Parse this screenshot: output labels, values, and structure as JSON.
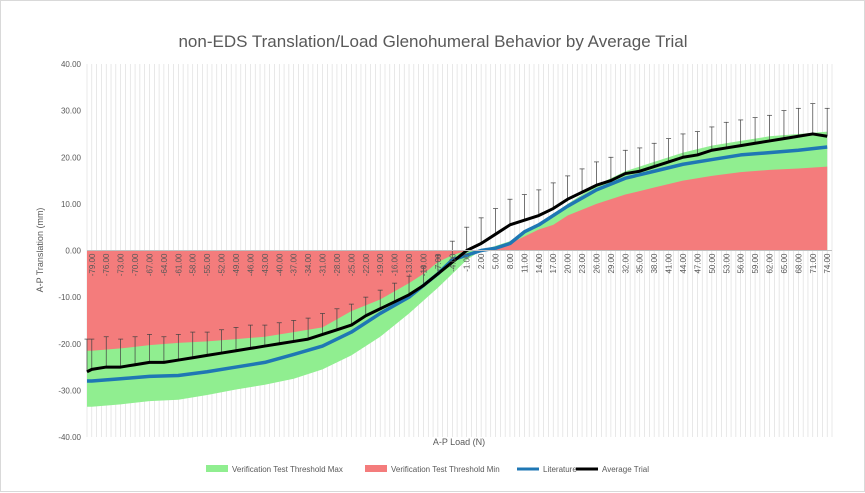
{
  "chart_data": {
    "type": "area",
    "title": "non-EDS Translation/Load Glenohumeral Behavior by Average Trial",
    "xlabel": "A-P Load (N)",
    "ylabel": "A-P Translation (mm)",
    "ylim": [
      -40,
      40
    ],
    "y_ticks": [
      "40.00",
      "30.00",
      "20.00",
      "10.00",
      "0.00",
      "-10.00",
      "-20.00",
      "-30.00",
      "-40.00"
    ],
    "x_ticks": [
      "-79.00",
      "-76.00",
      "-73.00",
      "-70.00",
      "-67.00",
      "-64.00",
      "-61.00",
      "-58.00",
      "-55.00",
      "-52.00",
      "-49.00",
      "-46.00",
      "-43.00",
      "-40.00",
      "-37.00",
      "-34.00",
      "-31.00",
      "-28.00",
      "-25.00",
      "-22.00",
      "-19.00",
      "-16.00",
      "-13.00",
      "-10.00",
      "-7.00",
      "-4.00",
      "-1.00",
      "2.00",
      "5.00",
      "8.00",
      "11.00",
      "14.00",
      "17.00",
      "20.00",
      "23.00",
      "26.00",
      "29.00",
      "32.00",
      "35.00",
      "38.00",
      "41.00",
      "44.00",
      "47.00",
      "50.00",
      "53.00",
      "56.00",
      "59.00",
      "62.00",
      "65.00",
      "68.00",
      "71.00",
      "74.00"
    ],
    "x_tick_values": [
      -79,
      -76,
      -73,
      -70,
      -67,
      -64,
      -61,
      -58,
      -55,
      -52,
      -49,
      -46,
      -43,
      -40,
      -37,
      -34,
      -31,
      -28,
      -25,
      -22,
      -19,
      -16,
      -13,
      -10,
      -7,
      -4,
      -1,
      2,
      5,
      8,
      11,
      14,
      17,
      20,
      23,
      26,
      29,
      32,
      35,
      38,
      41,
      44,
      47,
      50,
      53,
      56,
      59,
      62,
      65,
      68,
      71,
      74
    ],
    "xlim": [
      -80,
      75
    ],
    "grid": "vertical",
    "legend_position": "bottom",
    "series": [
      {
        "name": "Verification Test Threshold Max",
        "kind": "area",
        "color": "#90ee90",
        "x": [
          -80,
          -79,
          -73,
          -67,
          -61,
          -55,
          -49,
          -43,
          -37,
          -31,
          -25,
          -19,
          -13,
          -7,
          -4,
          -1,
          2,
          5,
          8,
          11,
          14,
          20,
          26,
          32,
          38,
          44,
          50,
          56,
          62,
          68,
          74
        ],
        "values": [
          -33.5,
          -33.5,
          -33,
          -32.3,
          -32,
          -31,
          -29.8,
          -28.8,
          -27.5,
          -25.5,
          -22.5,
          -18.5,
          -13.5,
          -8,
          -5,
          -2,
          0,
          1,
          2,
          4,
          5.5,
          10,
          14,
          17,
          19,
          21,
          22.5,
          23.5,
          24.5,
          25,
          25.5
        ]
      },
      {
        "name": "Verification Test Threshold Min",
        "kind": "area",
        "color": "#f47c7c",
        "x": [
          -80,
          -79,
          -73,
          -67,
          -61,
          -55,
          -49,
          -43,
          -37,
          -31,
          -25,
          -19,
          -13,
          -10,
          -7,
          -4,
          -1,
          2,
          5,
          8,
          11,
          14,
          17,
          20,
          26,
          32,
          38,
          44,
          50,
          56,
          62,
          68,
          74
        ],
        "values": [
          -21.5,
          -21.5,
          -21,
          -20.3,
          -19.8,
          -19.5,
          -19,
          -18.5,
          -17.5,
          -16.5,
          -13,
          -10.5,
          -7,
          -5,
          -2.5,
          -1,
          0,
          0,
          0.5,
          1.5,
          3,
          4.5,
          5.5,
          7.5,
          10,
          12,
          13.5,
          15,
          16,
          16.8,
          17.3,
          17.6,
          18
        ]
      },
      {
        "name": "Literature",
        "kind": "line",
        "color": "#1f77b4",
        "x": [
          -80,
          -79,
          -73,
          -67,
          -61,
          -55,
          -49,
          -43,
          -37,
          -31,
          -25,
          -19,
          -13,
          -7,
          -4,
          -1,
          2,
          5,
          8,
          11,
          14,
          20,
          26,
          32,
          38,
          44,
          50,
          56,
          62,
          68,
          74
        ],
        "values": [
          -28,
          -28,
          -27.5,
          -27,
          -26.8,
          -26,
          -25,
          -24,
          -22.3,
          -20.5,
          -17.5,
          -13.5,
          -10,
          -5,
          -2,
          -1,
          0,
          0.5,
          1.5,
          4,
          5.5,
          9.5,
          13,
          15.5,
          17,
          18.5,
          19.5,
          20.5,
          21,
          21.5,
          22.2
        ]
      },
      {
        "name": "Average Trial",
        "kind": "line_with_error_bars",
        "color": "#000000",
        "x": [
          -80,
          -79,
          -76,
          -73,
          -70,
          -67,
          -64,
          -61,
          -58,
          -55,
          -52,
          -49,
          -46,
          -43,
          -40,
          -37,
          -34,
          -31,
          -28,
          -25,
          -22,
          -19,
          -16,
          -13,
          -10,
          -7,
          -4,
          -1,
          2,
          5,
          8,
          11,
          14,
          17,
          20,
          23,
          26,
          29,
          32,
          35,
          38,
          41,
          44,
          47,
          50,
          53,
          56,
          59,
          62,
          65,
          68,
          71,
          74
        ],
        "values": [
          -26,
          -25.5,
          -25,
          -25,
          -24.5,
          -24,
          -24,
          -23.5,
          -23,
          -22.5,
          -22,
          -21.5,
          -21,
          -20.5,
          -20,
          -19.5,
          -19,
          -18,
          -17,
          -16,
          -14,
          -12.5,
          -11,
          -9.5,
          -7.5,
          -5,
          -2.5,
          0,
          1.5,
          3.5,
          5.5,
          6.5,
          7.5,
          9,
          11,
          12.5,
          14,
          15,
          16.5,
          17,
          18,
          19,
          20,
          20.5,
          21.5,
          22,
          22.5,
          23,
          23.5,
          24,
          24.5,
          25,
          24.5
        ],
        "error_plus": [
          7,
          6.5,
          6.5,
          6,
          6,
          6,
          5.5,
          5.5,
          5.5,
          5,
          5,
          5,
          5,
          4.5,
          4.5,
          4.5,
          4.5,
          4.5,
          4.5,
          4.5,
          4,
          4,
          4,
          4,
          4,
          4,
          4.5,
          5,
          5.5,
          5.5,
          5.5,
          5.5,
          5.5,
          5.5,
          5,
          5,
          5,
          5,
          5,
          5,
          5,
          5,
          5,
          5,
          5,
          5.5,
          5.5,
          5.5,
          5.5,
          6,
          6,
          6.5,
          6
        ]
      }
    ]
  }
}
